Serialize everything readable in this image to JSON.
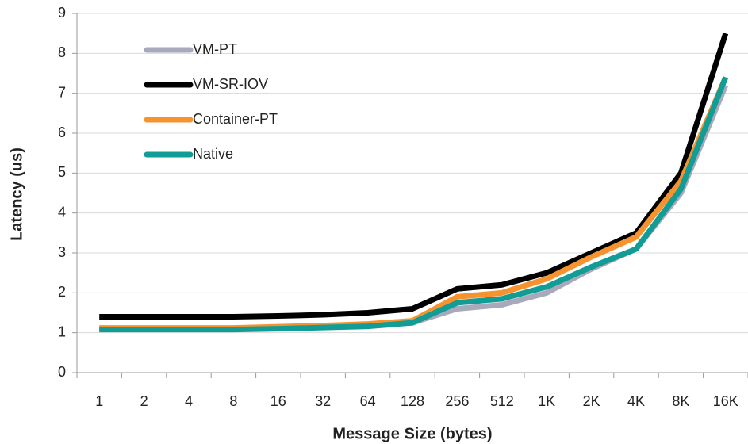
{
  "chart_data": {
    "type": "line",
    "x_label": "Message Size (bytes)",
    "y_label": "Latency (us)",
    "categories": [
      "1",
      "2",
      "4",
      "8",
      "16",
      "32",
      "64",
      "128",
      "256",
      "512",
      "1K",
      "2K",
      "4K",
      "8K",
      "16K"
    ],
    "series": [
      {
        "name": "VM-PT",
        "color": "#a9a9bc",
        "values": [
          1.1,
          1.1,
          1.1,
          1.1,
          1.12,
          1.15,
          1.18,
          1.25,
          1.6,
          1.7,
          2.0,
          2.6,
          3.1,
          4.5,
          7.2
        ]
      },
      {
        "name": "VM-SR-IOV",
        "color": "#000000",
        "values": [
          1.4,
          1.4,
          1.4,
          1.4,
          1.42,
          1.45,
          1.5,
          1.6,
          2.1,
          2.2,
          2.5,
          3.0,
          3.5,
          5.0,
          8.5
        ]
      },
      {
        "name": "Container-PT",
        "color": "#f7932f",
        "values": [
          1.12,
          1.12,
          1.12,
          1.12,
          1.15,
          1.18,
          1.22,
          1.3,
          1.9,
          2.0,
          2.35,
          2.9,
          3.4,
          4.8,
          7.4
        ]
      },
      {
        "name": "Native",
        "color": "#119c96",
        "values": [
          1.08,
          1.08,
          1.08,
          1.08,
          1.1,
          1.13,
          1.16,
          1.25,
          1.75,
          1.85,
          2.15,
          2.65,
          3.1,
          4.6,
          7.4
        ]
      }
    ],
    "ylim": [
      0,
      9
    ],
    "yticks": [
      0,
      1,
      2,
      3,
      4,
      5,
      6,
      7,
      8,
      9
    ],
    "grid": true,
    "legend": "upper left"
  }
}
